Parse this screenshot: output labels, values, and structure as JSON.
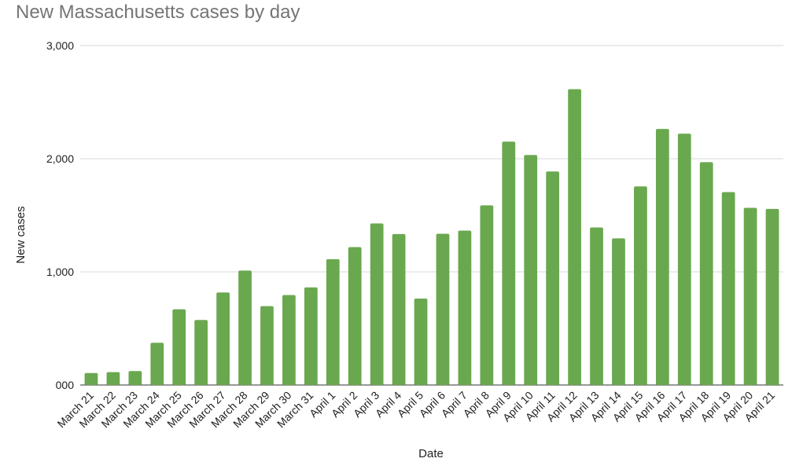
{
  "chart_data": {
    "type": "bar",
    "title": "New Massachusetts cases by day",
    "xlabel": "Date",
    "ylabel": "New cases",
    "ylim": [
      0,
      3000
    ],
    "yticks": [
      0,
      1000,
      2000,
      3000
    ],
    "ytick_labels": [
      "000",
      "1,000",
      "2,000",
      "3,000"
    ],
    "grid": true,
    "color": "#6aa84f",
    "categories": [
      "March 21",
      "March 22",
      "March 23",
      "March 24",
      "March 25",
      "March 26",
      "March 27",
      "March 28",
      "March 29",
      "March 30",
      "March 31",
      "April 1",
      "April 2",
      "April 3",
      "April 4",
      "April 5",
      "April 6",
      "April 7",
      "April 8",
      "April 9",
      "April 10",
      "April 11",
      "April 12",
      "April 13",
      "April 14",
      "April 15",
      "April 16",
      "April 17",
      "April 18",
      "April 19",
      "April 20",
      "April 21"
    ],
    "values": [
      106,
      114,
      123,
      373,
      669,
      575,
      818,
      1011,
      697,
      795,
      863,
      1112,
      1219,
      1428,
      1334,
      764,
      1337,
      1365,
      1588,
      2151,
      2033,
      1887,
      2615,
      1392,
      1296,
      1755,
      2263,
      2221,
      1970,
      1705,
      1566,
      1556
    ]
  }
}
